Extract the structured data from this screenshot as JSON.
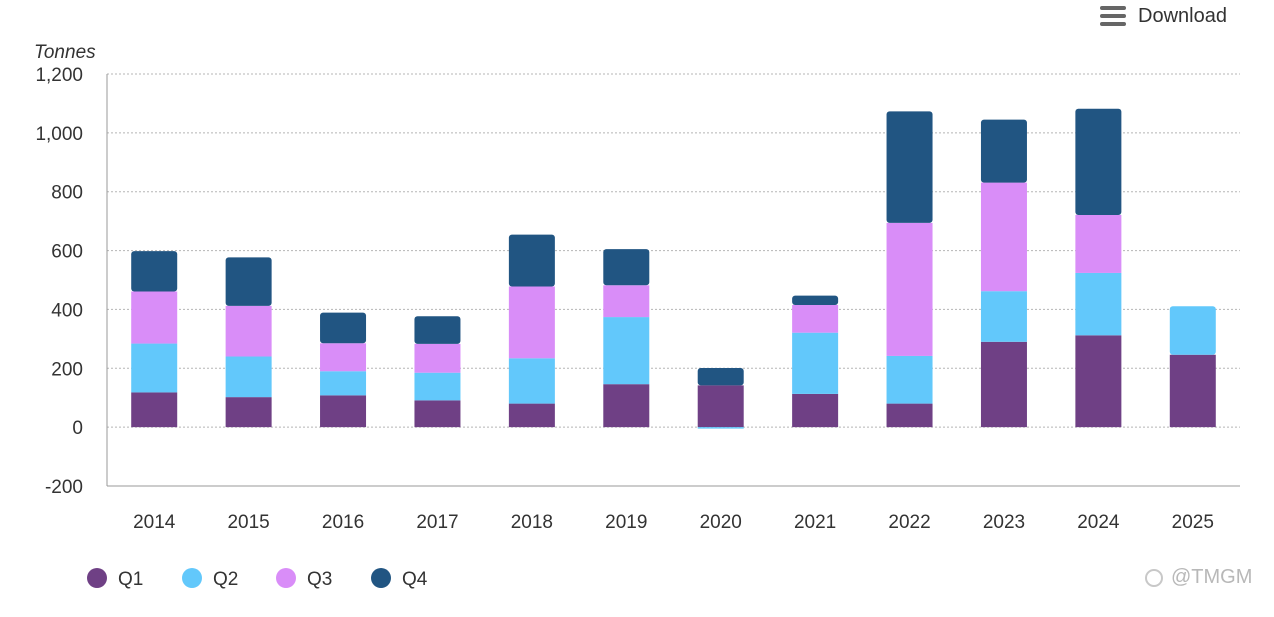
{
  "toolbar": {
    "download_label": "Download",
    "menu_icon": "hamburger-menu-icon"
  },
  "watermark": {
    "text": "@TMGM"
  },
  "chart_data": {
    "type": "bar",
    "stacked": true,
    "title": "",
    "xlabel": "",
    "ylabel": "Tonnes",
    "ylim": [
      -200,
      1200
    ],
    "yticks": [
      -200,
      0,
      200,
      400,
      600,
      800,
      1000,
      1200
    ],
    "ytick_labels": [
      "-200",
      "0",
      "200",
      "400",
      "600",
      "800",
      "1,000",
      "1,200"
    ],
    "grid": true,
    "legend_position": "bottom-left",
    "categories": [
      "2014",
      "2015",
      "2016",
      "2017",
      "2018",
      "2019",
      "2020",
      "2021",
      "2022",
      "2023",
      "2024",
      "2025"
    ],
    "series": [
      {
        "name": "Q1",
        "color": "#6f4085",
        "values": [
          118,
          102,
          108,
          91,
          80,
          146,
          142,
          113,
          80,
          290,
          312,
          246
        ]
      },
      {
        "name": "Q2",
        "color": "#62c8fb",
        "values": [
          166,
          138,
          82,
          94,
          154,
          228,
          -5,
          208,
          162,
          172,
          212,
          165
        ]
      },
      {
        "name": "Q3",
        "color": "#d98df8",
        "values": [
          177,
          172,
          95,
          98,
          244,
          108,
          0,
          94,
          452,
          369,
          197,
          0
        ]
      },
      {
        "name": "Q4",
        "color": "#215582",
        "values": [
          137,
          165,
          104,
          94,
          176,
          123,
          59,
          32,
          379,
          214,
          361,
          0
        ]
      }
    ]
  }
}
